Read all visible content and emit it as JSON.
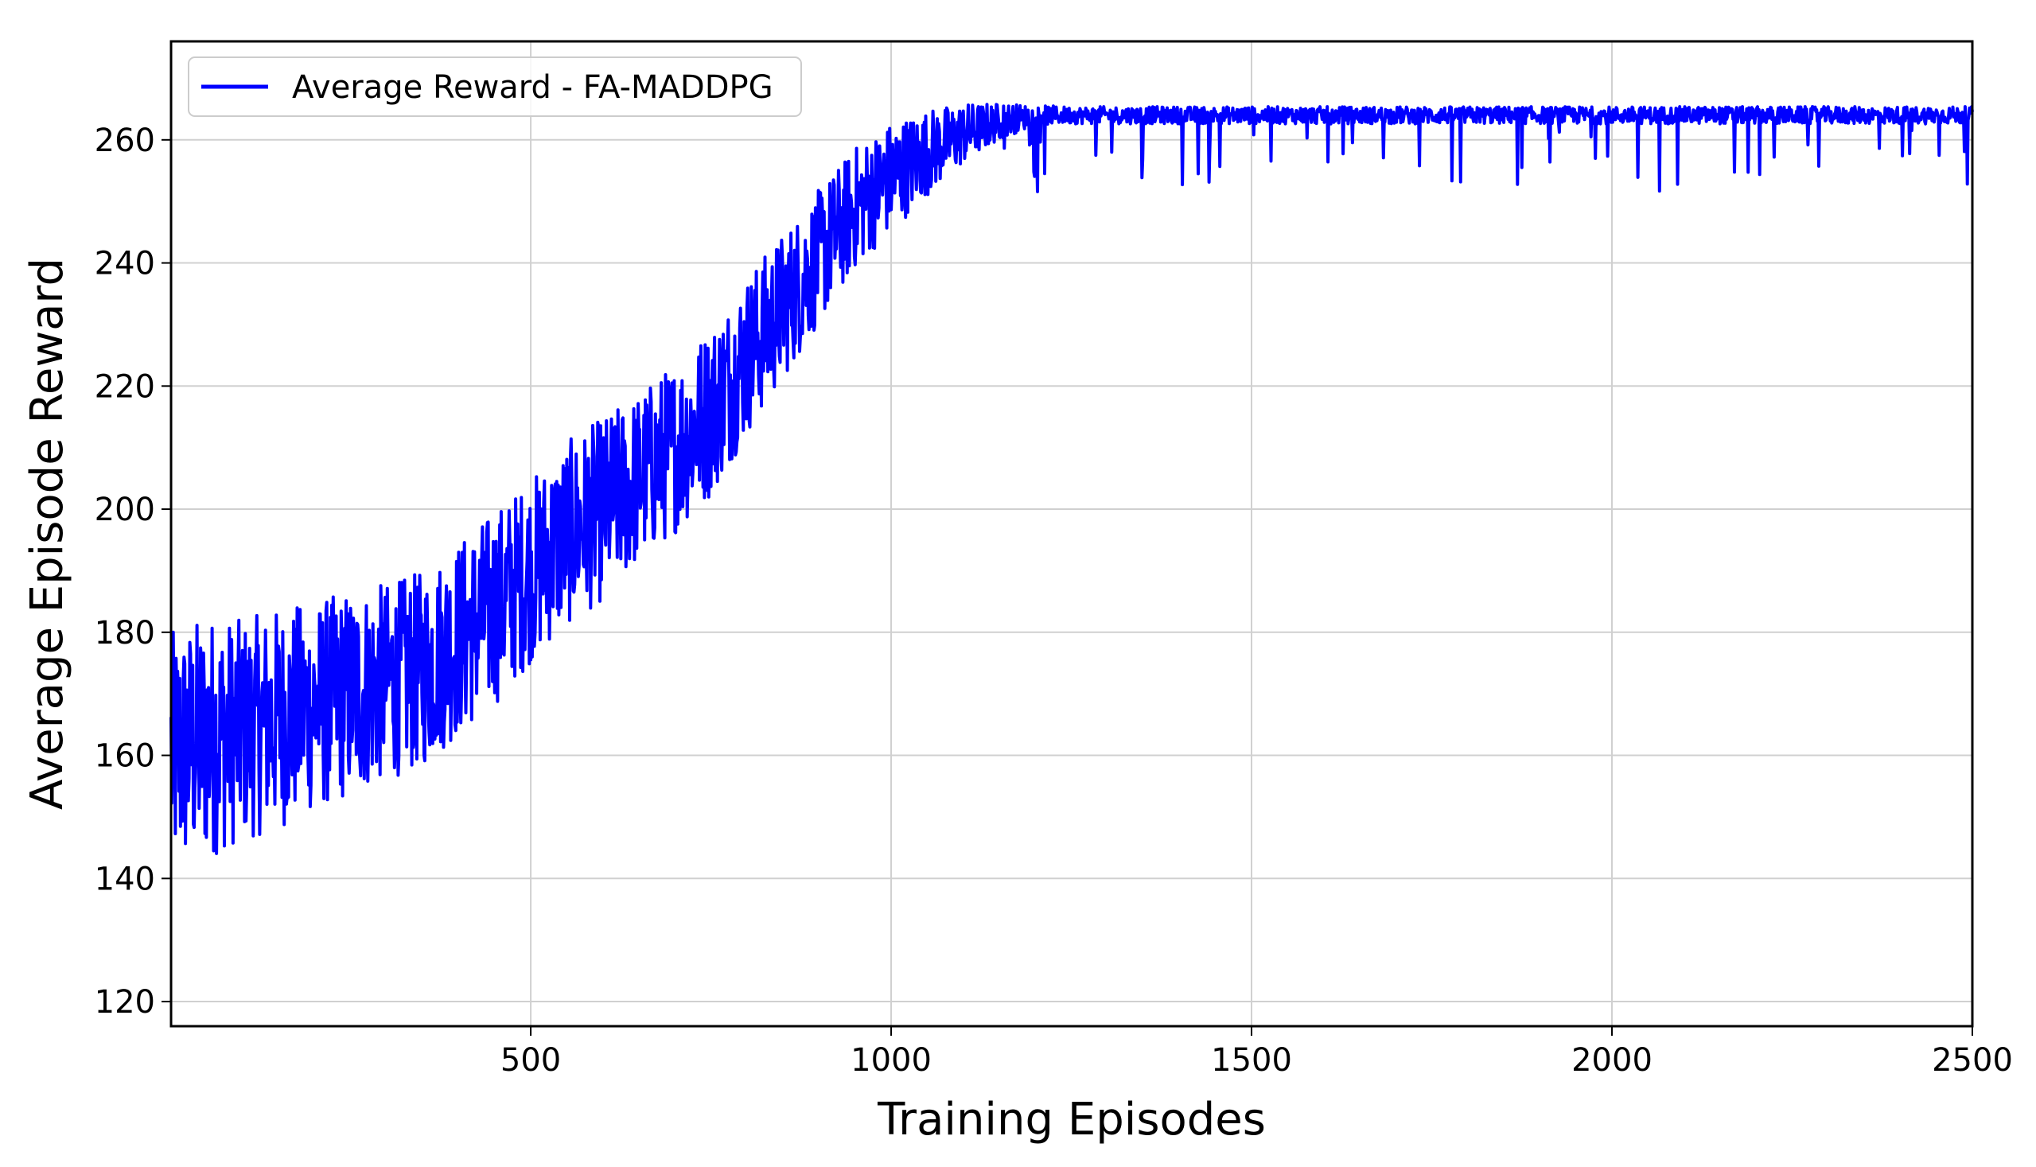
{
  "chart_data": {
    "type": "line",
    "title": "",
    "xlabel": "Training Episodes",
    "ylabel": "Average Episode Reward",
    "xlim": [
      1,
      2500
    ],
    "ylim": [
      116,
      276
    ],
    "xticks": [
      500,
      1000,
      1500,
      2000,
      2500
    ],
    "yticks": [
      120,
      140,
      160,
      180,
      200,
      220,
      240,
      260
    ],
    "grid": true,
    "legend_position": "top-left",
    "series": [
      {
        "name": "Average Reward - FA-MADDPG",
        "color": "#0000ff",
        "x": [
          1,
          50,
          100,
          150,
          200,
          250,
          300,
          350,
          400,
          450,
          500,
          550,
          600,
          650,
          700,
          750,
          800,
          850,
          900,
          950,
          1000,
          1050,
          1100,
          1150,
          1200,
          1250,
          1300,
          1350,
          1400,
          1450,
          1500,
          1550,
          1600,
          1650,
          1700,
          1750,
          1800,
          1850,
          1900,
          1950,
          2000,
          2050,
          2100,
          2150,
          2200,
          2250,
          2300,
          2350,
          2400,
          2450,
          2500
        ],
        "y": [
          160,
          163,
          164,
          166,
          168,
          170,
          172,
          174,
          179,
          184,
          190,
          196,
          200,
          205,
          210,
          216,
          225,
          233,
          241,
          249,
          254,
          258,
          261,
          263,
          264,
          264,
          264,
          264,
          264,
          264,
          264,
          264,
          264,
          264,
          264,
          264,
          264,
          264,
          264,
          264,
          264,
          264,
          264,
          264,
          264,
          264,
          264,
          264,
          264,
          264,
          264
        ],
        "noise": [
          20,
          20,
          18,
          18,
          17,
          17,
          16,
          16,
          16,
          16,
          15,
          15,
          15,
          14,
          14,
          14,
          13,
          12,
          11,
          10,
          9,
          7,
          5,
          3,
          1.6,
          1.4,
          1.4,
          1.4,
          1.4,
          1.4,
          1.4,
          1.4,
          1.4,
          1.4,
          1.4,
          1.4,
          1.4,
          1.4,
          1.4,
          1.4,
          1.4,
          1.4,
          1.4,
          1.4,
          1.4,
          1.4,
          1.4,
          1.4,
          1.4,
          1.4,
          1.4
        ]
      }
    ]
  },
  "colors": {
    "series": "#0000ff",
    "grid": "#d0d0d0",
    "axes": "#000000",
    "background": "#ffffff"
  }
}
